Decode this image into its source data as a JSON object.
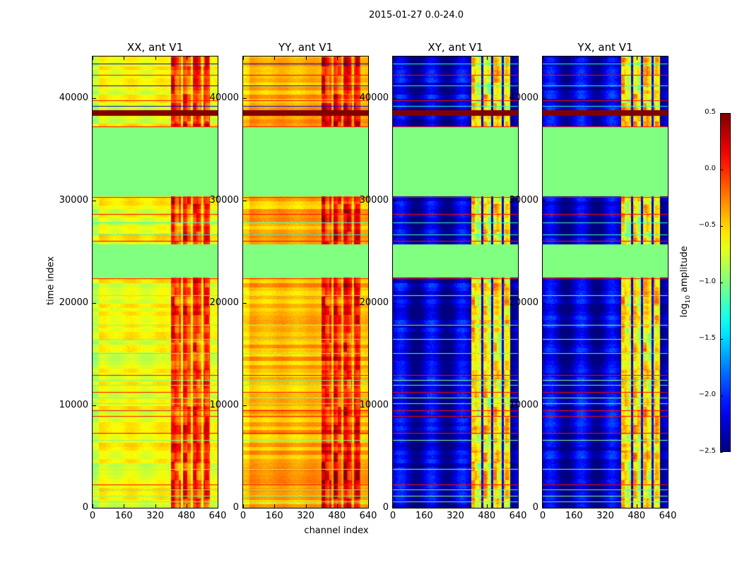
{
  "chart_data": {
    "type": "heatmap",
    "suptitle": "2015-01-27 0.0-24.0",
    "xlabel": "channel index",
    "ylabel": "time index",
    "xlim": [
      0,
      640
    ],
    "ylim": [
      0,
      44100
    ],
    "x_ticks": [
      "0",
      "160",
      "320",
      "480",
      "640"
    ],
    "x_tick_values": [
      0,
      160,
      320,
      480,
      640
    ],
    "y_ticks": [
      "0",
      "10000",
      "20000",
      "30000",
      "40000"
    ],
    "y_tick_values": [
      0,
      10000,
      20000,
      30000,
      40000
    ],
    "colormap": "jet",
    "vmin": -2.5,
    "vmax": 0.5,
    "colorbar": {
      "label_main": "log",
      "label_sub": "10",
      "label_rest": " amplitude",
      "ticks": [
        "0.5",
        "0.0",
        "−0.5",
        "−1.0",
        "−1.5",
        "−2.0",
        "−2.5"
      ],
      "tick_values": [
        0.5,
        0.0,
        -0.5,
        -1.0,
        -1.5,
        -2.0,
        -2.5
      ]
    },
    "flagged_time_ranges": [
      [
        22550,
        25800
      ],
      [
        30500,
        37200
      ]
    ],
    "flag_value": -1.0,
    "saturated_time_ranges": [
      [
        38350,
        38900
      ]
    ],
    "saturated_value": 0.5,
    "lines": [
      {
        "t": 43400,
        "v": -2.3
      },
      {
        "t": 42300,
        "v": 0.1
      },
      {
        "t": 41300,
        "v": -2.2
      },
      {
        "t": 39800,
        "v": 0.1
      },
      {
        "t": 39300,
        "v": -2.2
      },
      {
        "t": 37300,
        "v": 0.1
      },
      {
        "t": 30400,
        "v": 0.1
      },
      {
        "t": 28700,
        "v": 0.1
      },
      {
        "t": 27900,
        "v": -1.2
      },
      {
        "t": 26700,
        "v": -1.2
      },
      {
        "t": 26100,
        "v": 0.1
      },
      {
        "t": 22400,
        "v": 0.1
      },
      {
        "t": 20800,
        "v": -1.0
      },
      {
        "t": 17900,
        "v": -1.0
      },
      {
        "t": 16500,
        "v": -1.0
      },
      {
        "t": 15100,
        "v": -1.2
      },
      {
        "t": 13000,
        "v": 0.1
      },
      {
        "t": 12500,
        "v": -1.0
      },
      {
        "t": 12000,
        "v": -1.1
      },
      {
        "t": 11300,
        "v": 0.1
      },
      {
        "t": 10800,
        "v": -1.0
      },
      {
        "t": 10200,
        "v": -1.1
      },
      {
        "t": 9500,
        "v": 0.1
      },
      {
        "t": 9000,
        "v": 0.1
      },
      {
        "t": 7300,
        "v": 0.1
      },
      {
        "t": 6600,
        "v": -1.0
      },
      {
        "t": 3800,
        "v": -0.9
      },
      {
        "t": 2300,
        "v": 0.1
      },
      {
        "t": 1800,
        "v": -1.1
      },
      {
        "t": 1200,
        "v": -1.0
      },
      {
        "t": 600,
        "v": -1.1
      }
    ],
    "panels": [
      {
        "title": "XX, ant V1",
        "left_level": -0.65,
        "edge_level": -0.85,
        "right_level": -0.05,
        "gap_level": -0.6,
        "ripple": 0.06,
        "noise": 0.12
      },
      {
        "title": "YY, ant V1",
        "left_level": -0.4,
        "edge_level": -0.55,
        "right_level": 0.05,
        "gap_level": -0.45,
        "ripple": 0.05,
        "noise": 0.12
      },
      {
        "title": "XY, ant V1",
        "left_level": -2.3,
        "edge_level": -2.3,
        "right_level": -0.6,
        "gap_level": -2.2,
        "ripple": 0.25,
        "noise": 0.25
      },
      {
        "title": "YX, ant V1",
        "left_level": -2.3,
        "edge_level": -2.3,
        "right_level": -0.6,
        "gap_level": -2.2,
        "ripple": 0.25,
        "noise": 0.25
      }
    ],
    "bright_channel_range": [
      400,
      600
    ],
    "gap_channels": [
      455,
      505,
      560
    ]
  }
}
